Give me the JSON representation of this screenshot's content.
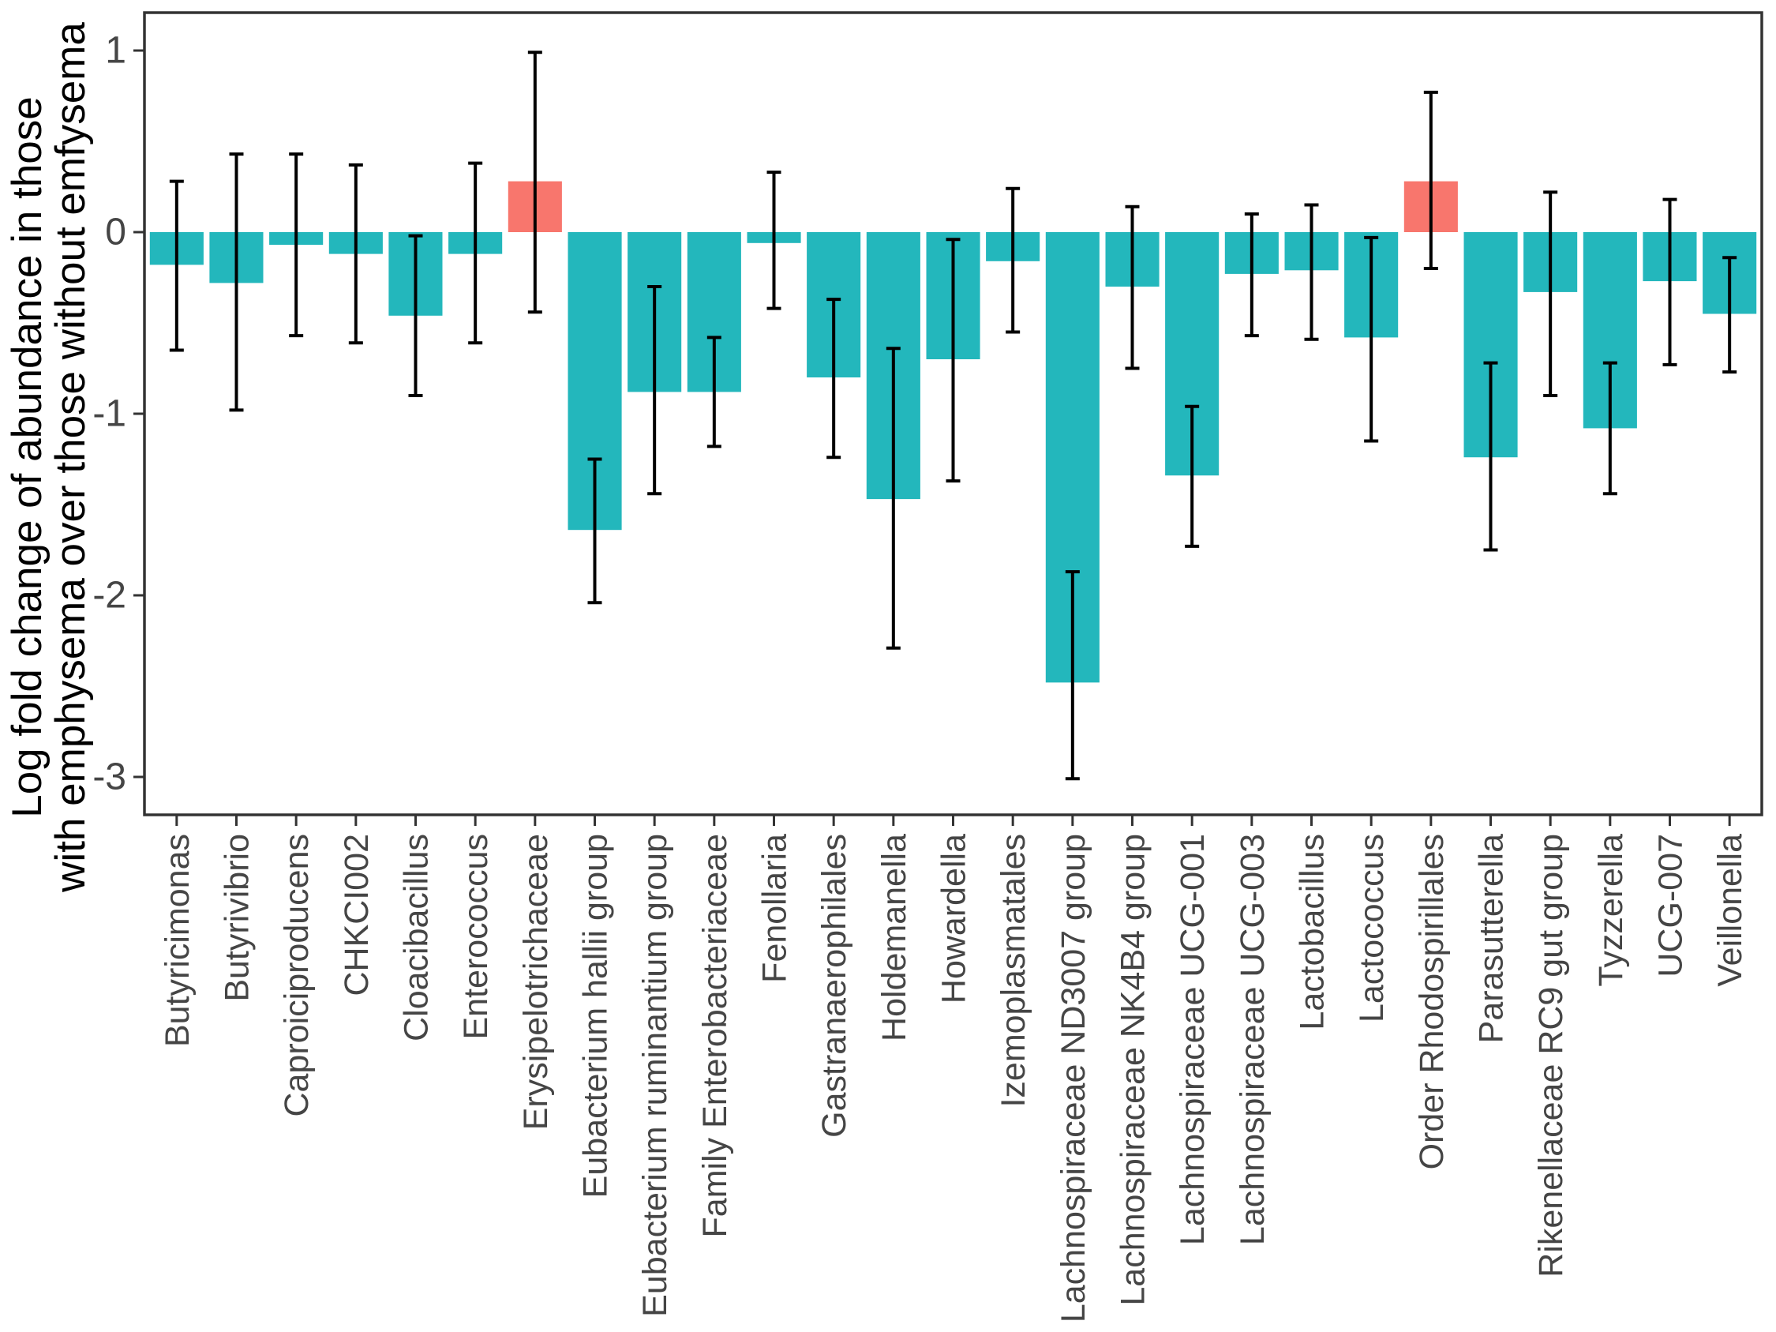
{
  "chart_data": {
    "type": "bar",
    "title": "",
    "xlabel": "",
    "ylabel_line1": "Log fold change of abundance in those",
    "ylabel_line2": "with emphysema over those without emfysema",
    "y_ticks": [
      "1",
      "0",
      "-1",
      "-2",
      "-3"
    ],
    "y_tick_values": [
      1,
      0,
      -1,
      -2,
      -3
    ],
    "ylim": [
      -3.2,
      1.21
    ],
    "grid": false,
    "legend": "none",
    "error_bars": true,
    "colors": {
      "bar": "#23B7BC",
      "highlight_bar": "#F8766D",
      "error_bar": "#000000",
      "axis_text": "#454545",
      "axis_line": "#333333",
      "title_text": "#000000",
      "background": "#FFFFFF"
    },
    "bars": [
      {
        "label": "Butyricimonas",
        "value": -0.18,
        "err_low": -0.65,
        "err_high": 0.28,
        "highlighted": false
      },
      {
        "label": "Butyrivibrio",
        "value": -0.28,
        "err_low": -0.98,
        "err_high": 0.43,
        "highlighted": false
      },
      {
        "label": "Caproiciproducens",
        "value": -0.07,
        "err_low": -0.57,
        "err_high": 0.43,
        "highlighted": false
      },
      {
        "label": "CHKCI002",
        "value": -0.12,
        "err_low": -0.61,
        "err_high": 0.37,
        "highlighted": false
      },
      {
        "label": "Cloacibacillus",
        "value": -0.46,
        "err_low": -0.9,
        "err_high": -0.02,
        "highlighted": false
      },
      {
        "label": "Enterococcus",
        "value": -0.12,
        "err_low": -0.61,
        "err_high": 0.38,
        "highlighted": false
      },
      {
        "label": "Erysipelotrichaceae",
        "value": 0.28,
        "err_low": -0.44,
        "err_high": 0.99,
        "highlighted": true
      },
      {
        "label": "Eubacterium hallii group",
        "value": -1.64,
        "err_low": -2.04,
        "err_high": -1.25,
        "highlighted": false
      },
      {
        "label": "Eubacterium ruminantium group",
        "value": -0.88,
        "err_low": -1.44,
        "err_high": -0.3,
        "highlighted": false
      },
      {
        "label": "Family Enterobacteriaceae",
        "value": -0.88,
        "err_low": -1.18,
        "err_high": -0.58,
        "highlighted": false
      },
      {
        "label": "Fenollaria",
        "value": -0.06,
        "err_low": -0.42,
        "err_high": 0.33,
        "highlighted": false
      },
      {
        "label": "Gastranaerophilales",
        "value": -0.8,
        "err_low": -1.24,
        "err_high": -0.37,
        "highlighted": false
      },
      {
        "label": "Holdemanella",
        "value": -1.47,
        "err_low": -2.29,
        "err_high": -0.64,
        "highlighted": false
      },
      {
        "label": "Howardella",
        "value": -0.7,
        "err_low": -1.37,
        "err_high": -0.04,
        "highlighted": false
      },
      {
        "label": "Izemoplasmatales",
        "value": -0.16,
        "err_low": -0.55,
        "err_high": 0.24,
        "highlighted": false
      },
      {
        "label": "Lachnospiraceae ND3007 group",
        "value": -2.48,
        "err_low": -3.01,
        "err_high": -1.87,
        "highlighted": false
      },
      {
        "label": "Lachnospiraceae NK4B4 group",
        "value": -0.3,
        "err_low": -0.75,
        "err_high": 0.14,
        "highlighted": false
      },
      {
        "label": "Lachnospiraceae UCG-001",
        "value": -1.34,
        "err_low": -1.73,
        "err_high": -0.96,
        "highlighted": false
      },
      {
        "label": "Lachnospiraceae UCG-003",
        "value": -0.23,
        "err_low": -0.57,
        "err_high": 0.1,
        "highlighted": false
      },
      {
        "label": "Lactobacillus",
        "value": -0.21,
        "err_low": -0.59,
        "err_high": 0.15,
        "highlighted": false
      },
      {
        "label": "Lactococcus",
        "value": -0.58,
        "err_low": -1.15,
        "err_high": -0.03,
        "highlighted": false
      },
      {
        "label": "Order Rhodospirillales",
        "value": 0.28,
        "err_low": -0.2,
        "err_high": 0.77,
        "highlighted": true
      },
      {
        "label": "Parasutterella",
        "value": -1.24,
        "err_low": -1.75,
        "err_high": -0.72,
        "highlighted": false
      },
      {
        "label": "Rikenellaceae RC9 gut group",
        "value": -0.33,
        "err_low": -0.9,
        "err_high": 0.22,
        "highlighted": false
      },
      {
        "label": "Tyzzerella",
        "value": -1.08,
        "err_low": -1.44,
        "err_high": -0.72,
        "highlighted": false
      },
      {
        "label": "UCG-007",
        "value": -0.27,
        "err_low": -0.73,
        "err_high": 0.18,
        "highlighted": false
      },
      {
        "label": "Veillonella",
        "value": -0.45,
        "err_low": -0.77,
        "err_high": -0.14,
        "highlighted": false
      }
    ]
  }
}
